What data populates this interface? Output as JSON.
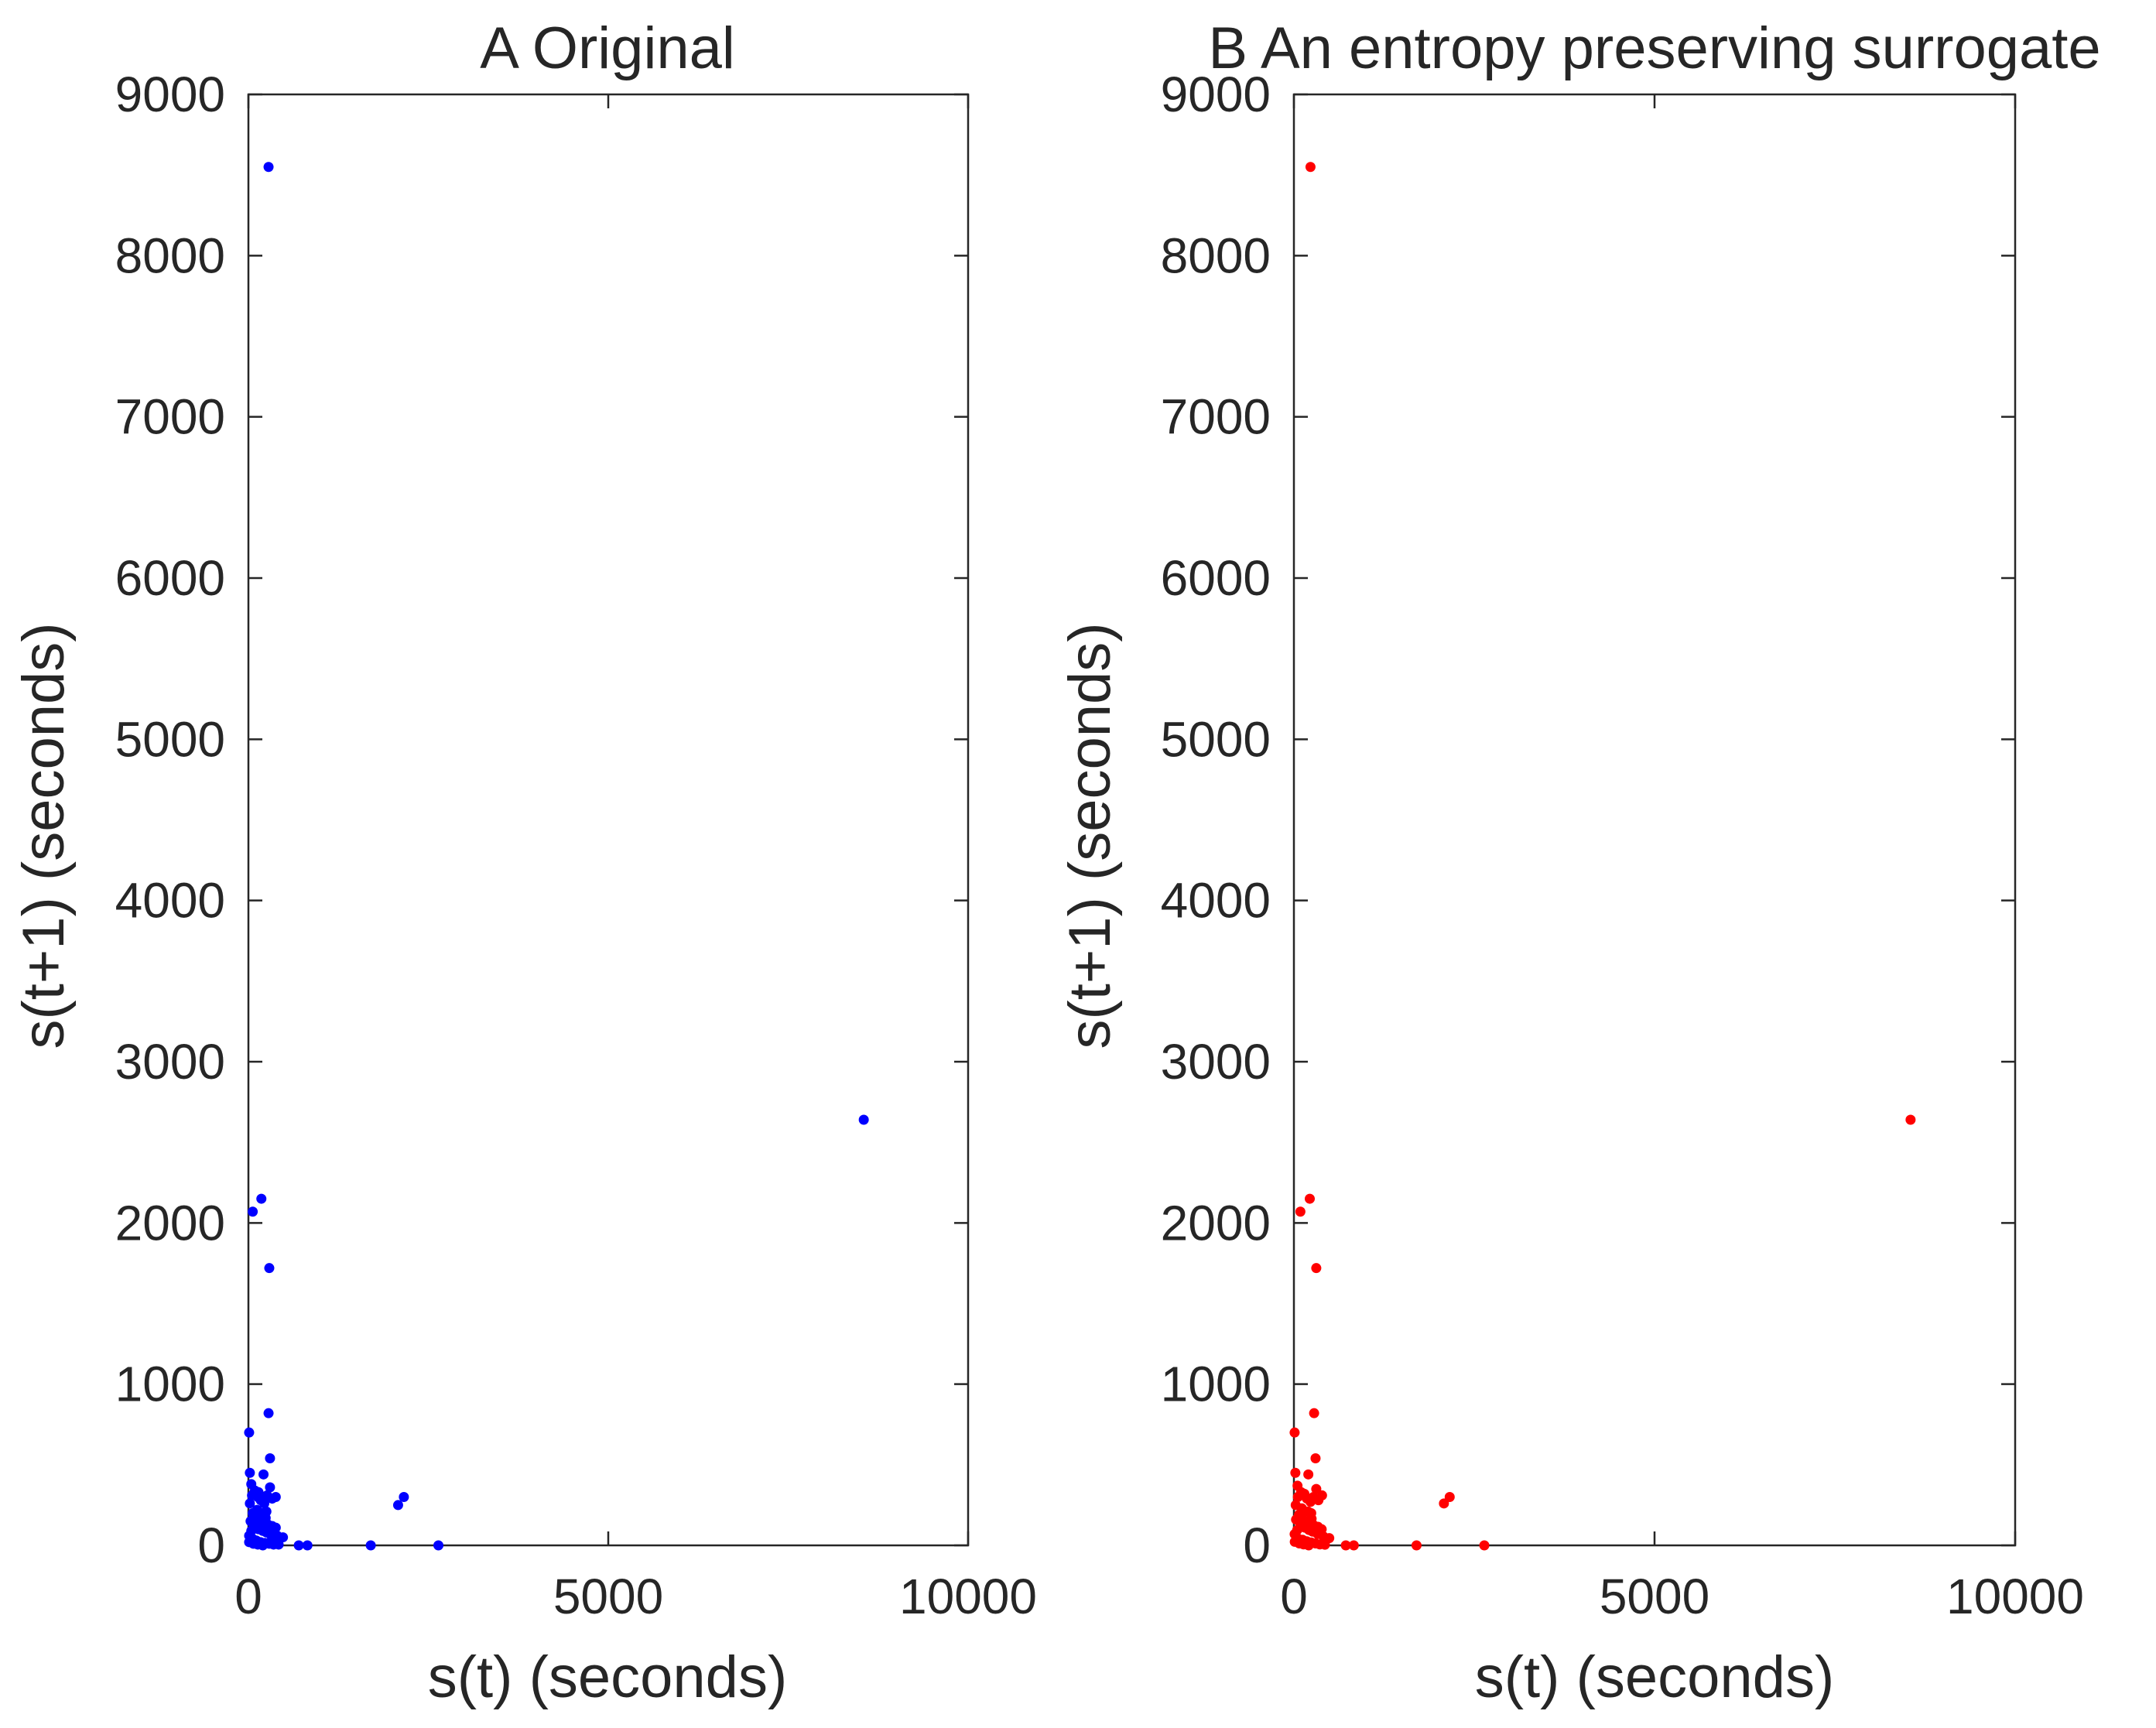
{
  "figure": {
    "panels": [
      "panel_a",
      "panel_b"
    ]
  },
  "chart_data": [
    {
      "id": "panel_a",
      "type": "scatter",
      "title": "A Original",
      "xlabel": "s(t) (seconds)",
      "ylabel": "s(t+1) (seconds)",
      "xlim": [
        0,
        10000
      ],
      "ylim": [
        0,
        9000
      ],
      "xticks": [
        0,
        5000,
        10000
      ],
      "xtick_labels": [
        "0",
        "5000",
        "10000"
      ],
      "yticks": [
        0,
        1000,
        2000,
        3000,
        4000,
        5000,
        6000,
        7000,
        8000,
        9000
      ],
      "ytick_labels": [
        "0",
        "1000",
        "2000",
        "3000",
        "4000",
        "5000",
        "6000",
        "7000",
        "8000",
        "9000"
      ],
      "grid": false,
      "marker_color": "#0000ff",
      "series": [
        {
          "name": "original",
          "points": [
            [
              280,
              8550
            ],
            [
              8550,
              2640
            ],
            [
              180,
              2150
            ],
            [
              60,
              2070
            ],
            [
              290,
              1720
            ],
            [
              280,
              820
            ],
            [
              10,
              700
            ],
            [
              300,
              540
            ],
            [
              210,
              440
            ],
            [
              20,
              450
            ],
            [
              2160,
              300
            ],
            [
              2080,
              250
            ],
            [
              1700,
              0
            ],
            [
              2640,
              0
            ],
            [
              40,
              380
            ],
            [
              90,
              340
            ],
            [
              130,
              300
            ],
            [
              170,
              280
            ],
            [
              220,
              260
            ],
            [
              260,
              310
            ],
            [
              330,
              290
            ],
            [
              380,
              300
            ],
            [
              300,
              360
            ],
            [
              250,
              210
            ],
            [
              120,
              220
            ],
            [
              60,
              200
            ],
            [
              30,
              150
            ],
            [
              80,
              120
            ],
            [
              140,
              100
            ],
            [
              200,
              90
            ],
            [
              250,
              80
            ],
            [
              320,
              60
            ],
            [
              400,
              60
            ],
            [
              480,
              50
            ],
            [
              10,
              60
            ],
            [
              60,
              40
            ],
            [
              110,
              30
            ],
            [
              170,
              20
            ],
            [
              230,
              15
            ],
            [
              290,
              10
            ],
            [
              350,
              5
            ],
            [
              420,
              5
            ],
            [
              700,
              0
            ],
            [
              820,
              0
            ],
            [
              20,
              260
            ],
            [
              100,
              180
            ],
            [
              160,
              160
            ],
            [
              210,
              140
            ],
            [
              270,
              130
            ],
            [
              330,
              120
            ],
            [
              380,
              110
            ],
            [
              40,
              90
            ],
            [
              190,
              200
            ],
            [
              240,
              170
            ],
            [
              50,
              310
            ],
            [
              140,
              330
            ],
            [
              10,
              20
            ],
            [
              70,
              10
            ],
            [
              130,
              5
            ],
            [
              200,
              0
            ]
          ]
        }
      ]
    },
    {
      "id": "panel_b",
      "type": "scatter",
      "title": "B An entropy preserving surrogate",
      "xlabel": "s(t) (seconds)",
      "ylabel": "s(t+1) (seconds)",
      "xlim": [
        0,
        10000
      ],
      "ylim": [
        0,
        9000
      ],
      "xticks": [
        0,
        5000,
        10000
      ],
      "xtick_labels": [
        "0",
        "5000",
        "10000"
      ],
      "yticks": [
        0,
        1000,
        2000,
        3000,
        4000,
        5000,
        6000,
        7000,
        8000,
        9000
      ],
      "ytick_labels": [
        "0",
        "1000",
        "2000",
        "3000",
        "4000",
        "5000",
        "6000",
        "7000",
        "8000",
        "9000"
      ],
      "grid": false,
      "marker_color": "#ff0000",
      "series": [
        {
          "name": "surrogate",
          "points": [
            [
              230,
              8550
            ],
            [
              8550,
              2640
            ],
            [
              220,
              2150
            ],
            [
              90,
              2070
            ],
            [
              310,
              1720
            ],
            [
              280,
              820
            ],
            [
              10,
              700
            ],
            [
              300,
              540
            ],
            [
              200,
              440
            ],
            [
              20,
              450
            ],
            [
              2160,
              300
            ],
            [
              2080,
              260
            ],
            [
              1700,
              0
            ],
            [
              2640,
              0
            ],
            [
              50,
              370
            ],
            [
              100,
              330
            ],
            [
              140,
              310
            ],
            [
              180,
              290
            ],
            [
              230,
              270
            ],
            [
              270,
              300
            ],
            [
              340,
              280
            ],
            [
              390,
              310
            ],
            [
              310,
              350
            ],
            [
              240,
              200
            ],
            [
              110,
              230
            ],
            [
              70,
              190
            ],
            [
              30,
              160
            ],
            [
              90,
              130
            ],
            [
              150,
              110
            ],
            [
              210,
              95
            ],
            [
              260,
              85
            ],
            [
              330,
              70
            ],
            [
              410,
              55
            ],
            [
              490,
              45
            ],
            [
              10,
              70
            ],
            [
              50,
              45
            ],
            [
              120,
              35
            ],
            [
              180,
              25
            ],
            [
              240,
              18
            ],
            [
              300,
              12
            ],
            [
              360,
              6
            ],
            [
              430,
              4
            ],
            [
              720,
              0
            ],
            [
              830,
              0
            ],
            [
              25,
              250
            ],
            [
              105,
              175
            ],
            [
              165,
              150
            ],
            [
              215,
              135
            ],
            [
              275,
              125
            ],
            [
              335,
              115
            ],
            [
              385,
              100
            ],
            [
              45,
              95
            ],
            [
              195,
              210
            ],
            [
              245,
              165
            ],
            [
              55,
              300
            ],
            [
              145,
              320
            ],
            [
              12,
              22
            ],
            [
              75,
              12
            ],
            [
              135,
              6
            ],
            [
              205,
              0
            ]
          ]
        }
      ]
    }
  ]
}
